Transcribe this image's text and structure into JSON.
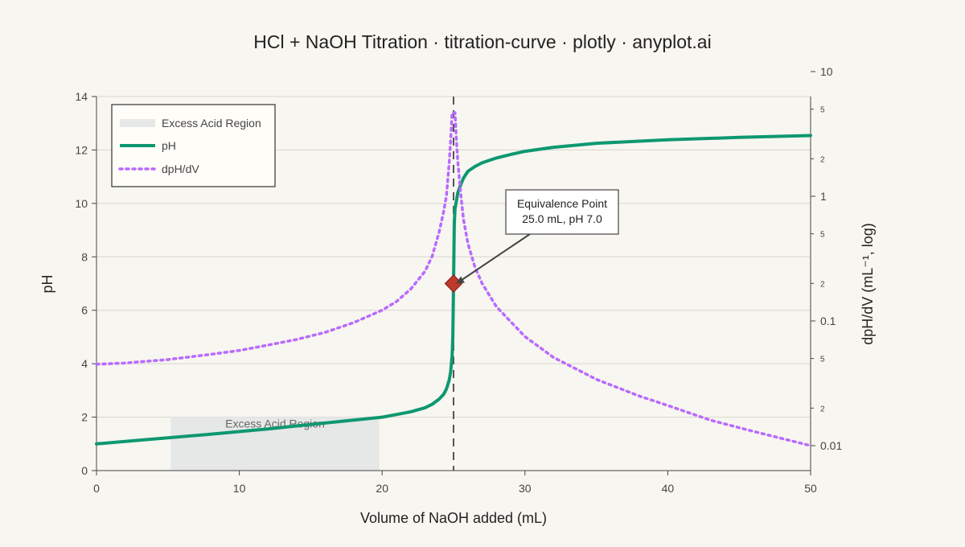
{
  "chart_data": {
    "type": "line",
    "title": "HCl + NaOH Titration · titration-curve · plotly · anyplot.ai",
    "xlabel": "Volume of NaOH added (mL)",
    "ylabel": "pH",
    "y2label": "dpH/dV (mL⁻¹, log)",
    "xlim": [
      0,
      50
    ],
    "ylim": [
      0,
      14
    ],
    "y2lim_log10": [
      -2.2,
      0.8
    ],
    "y2_scale": "log",
    "grid": true,
    "legend_position": "top-left",
    "x_ticks": [
      0,
      10,
      20,
      30,
      40,
      50
    ],
    "x_tick_labels": [
      "0",
      "10",
      "20",
      "30",
      "40",
      "50"
    ],
    "y_ticks": [
      0,
      2,
      4,
      6,
      8,
      10,
      12,
      14
    ],
    "y_tick_labels": [
      "0",
      "2",
      "4",
      "6",
      "8",
      "10",
      "12",
      "14"
    ],
    "y2_major_ticks": [
      0.01,
      0.1,
      1,
      10
    ],
    "y2_major_labels": [
      "0.01",
      "0.1",
      "1",
      "10"
    ],
    "y2_minor_ticks": [
      0.02,
      0.05,
      0.2,
      0.5,
      2,
      5,
      20,
      50
    ],
    "y2_minor_labels": [
      "2",
      "5",
      "2",
      "5",
      "2",
      "5",
      "2",
      "5"
    ],
    "legend": [
      {
        "label": "Excess Acid Region",
        "style": "fill"
      },
      {
        "label": "pH",
        "style": "solid"
      },
      {
        "label": "dpH/dV",
        "style": "dotted"
      }
    ],
    "shaded_region": {
      "label": "Excess Acid Region",
      "x": [
        5.2,
        19.8
      ],
      "y": [
        0,
        2
      ]
    },
    "equivalence_line_x": 25,
    "series": [
      {
        "name": "pH",
        "axis": "y",
        "color": "#0d9870",
        "x": [
          0,
          2,
          4,
          6,
          8,
          10,
          12,
          14,
          16,
          18,
          20,
          21,
          22,
          23,
          23.5,
          24,
          24.3,
          24.5,
          24.7,
          24.8,
          24.9,
          24.95,
          25,
          25.05,
          25.1,
          25.2,
          25.3,
          25.5,
          25.7,
          26,
          26.5,
          27,
          28,
          29,
          30,
          32,
          35,
          40,
          45,
          50
        ],
        "y": [
          1.0,
          1.09,
          1.18,
          1.27,
          1.36,
          1.46,
          1.56,
          1.67,
          1.78,
          1.89,
          2.0,
          2.1,
          2.2,
          2.35,
          2.48,
          2.68,
          2.85,
          3.05,
          3.4,
          3.7,
          4.3,
          5.0,
          7.0,
          9.2,
          9.8,
          10.1,
          10.4,
          10.7,
          10.95,
          11.2,
          11.38,
          11.52,
          11.7,
          11.83,
          11.95,
          12.1,
          12.25,
          12.38,
          12.47,
          12.54
        ]
      },
      {
        "name": "dpH/dV",
        "axis": "y2",
        "color": "#b86bff",
        "x": [
          0,
          2,
          5,
          8,
          10,
          12,
          14,
          16,
          18,
          20,
          21,
          22,
          23,
          23.5,
          24,
          24.3,
          24.5,
          24.7,
          24.8,
          24.9,
          24.95,
          25,
          25.05,
          25.1,
          25.2,
          25.3,
          25.5,
          25.7,
          26,
          26.5,
          27,
          28,
          30,
          32,
          35,
          38,
          40,
          43,
          46,
          50
        ],
        "y": [
          0.045,
          0.046,
          0.049,
          0.054,
          0.058,
          0.064,
          0.071,
          0.081,
          0.097,
          0.122,
          0.143,
          0.18,
          0.25,
          0.33,
          0.52,
          0.75,
          1.0,
          1.9,
          2.8,
          6.5,
          15.0,
          60.0,
          15.0,
          6.5,
          2.8,
          1.9,
          1.05,
          0.65,
          0.42,
          0.27,
          0.2,
          0.13,
          0.075,
          0.051,
          0.034,
          0.025,
          0.021,
          0.016,
          0.013,
          0.01
        ]
      }
    ],
    "marker": {
      "x": 25,
      "y": 7.0,
      "color": "#c0392b",
      "shape": "diamond"
    },
    "annotation": {
      "line1": "Equivalence Point",
      "line2": "25.0 mL, pH 7.0",
      "anchor_x": 25,
      "anchor_y": 7.0
    }
  }
}
